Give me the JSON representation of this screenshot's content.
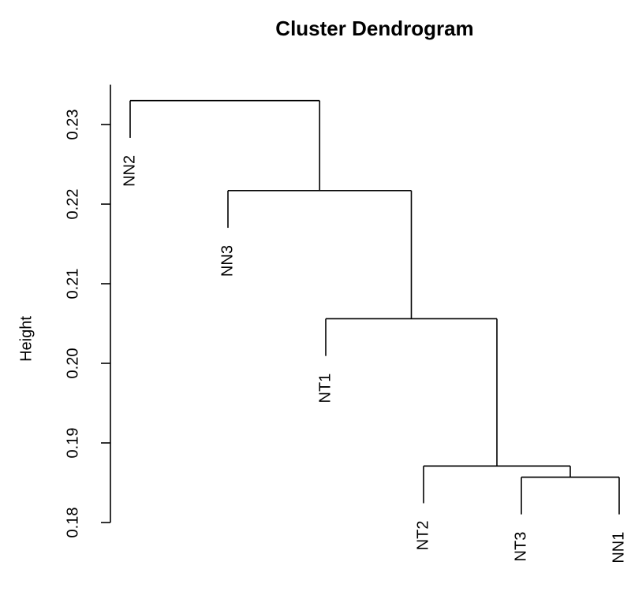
{
  "chart_data": {
    "type": "dendrogram",
    "title": "Cluster Dendrogram",
    "y_label": "Height",
    "ylim": [
      0.18,
      0.235
    ],
    "yticks": [
      0.18,
      0.19,
      {
        "value": 0.2,
        "label": "0.20"
      },
      0.21,
      0.22,
      0.23
    ],
    "color": "#000000",
    "tree": {
      "height": 0.233,
      "children": [
        {
          "label": "NN2"
        },
        {
          "height": 0.2217,
          "children": [
            {
              "label": "NN3"
            },
            {
              "height": 0.2056,
              "children": [
                {
                  "label": "NT1"
                },
                {
                  "height": 0.1871,
                  "children": [
                    {
                      "label": "NT2"
                    },
                    {
                      "height": 0.1857,
                      "children": [
                        {
                          "label": "NT3"
                        },
                        {
                          "label": "NN1"
                        }
                      ]
                    }
                  ]
                }
              ]
            }
          ]
        }
      ]
    }
  }
}
